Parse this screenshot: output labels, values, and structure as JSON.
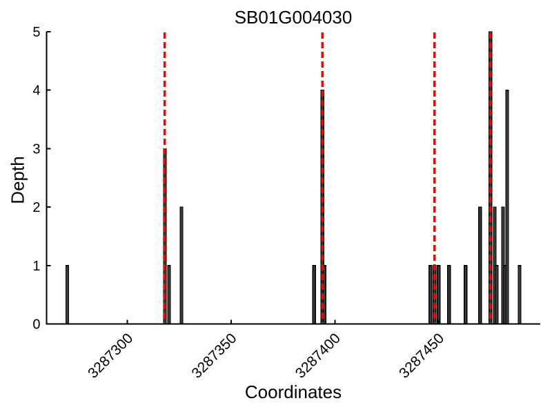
{
  "chart_data": {
    "type": "bar",
    "title": "SB01G004030",
    "xlabel": "Coordinates",
    "ylabel": "Depth",
    "xlim": [
      3287261,
      3287499
    ],
    "ylim": [
      0,
      5
    ],
    "xticks": [
      3287300,
      3287350,
      3287400,
      3287450
    ],
    "yticks": [
      0,
      1,
      2,
      3,
      4,
      5
    ],
    "grid": false,
    "legend": null,
    "background_color": "#ffffff",
    "bar_fill_color": "#3c3c3c",
    "bar_edge_color": "#000000",
    "red_line_color": "#ff0000",
    "axis_color": "#000000",
    "bars": [
      {
        "x": 3287271,
        "depth": 1
      },
      {
        "x": 3287318,
        "depth": 3
      },
      {
        "x": 3287320,
        "depth": 1
      },
      {
        "x": 3287326,
        "depth": 2
      },
      {
        "x": 3287390,
        "depth": 1
      },
      {
        "x": 3287394,
        "depth": 4
      },
      {
        "x": 3287395,
        "depth": 1
      },
      {
        "x": 3287446,
        "depth": 1
      },
      {
        "x": 3287448,
        "depth": 1
      },
      {
        "x": 3287450,
        "depth": 1
      },
      {
        "x": 3287455,
        "depth": 1
      },
      {
        "x": 3287463,
        "depth": 1
      },
      {
        "x": 3287470,
        "depth": 2
      },
      {
        "x": 3287475,
        "depth": 5
      },
      {
        "x": 3287477,
        "depth": 2
      },
      {
        "x": 3287478,
        "depth": 1
      },
      {
        "x": 3287481,
        "depth": 2
      },
      {
        "x": 3287482,
        "depth": 1
      },
      {
        "x": 3287483,
        "depth": 4
      },
      {
        "x": 3287489,
        "depth": 1
      }
    ],
    "red_dashed_lines_x": [
      3287318,
      3287394,
      3287448,
      3287475
    ]
  }
}
